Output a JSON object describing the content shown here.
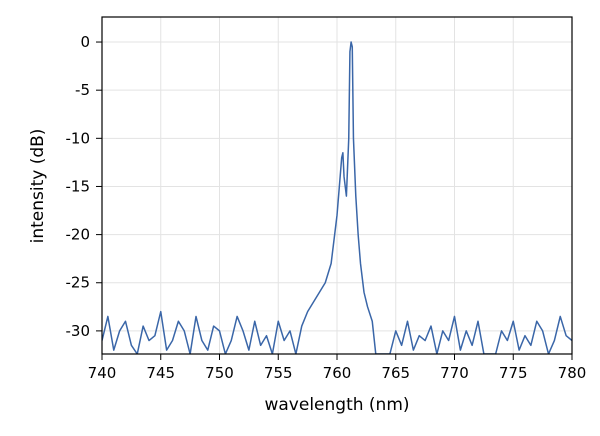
{
  "chart_data": {
    "type": "line",
    "xlabel": "wavelength (nm)",
    "ylabel": "intensity (dB)",
    "xlim": [
      740,
      780
    ],
    "ylim": [
      -32.4,
      2.6
    ],
    "xticks": [
      740,
      745,
      750,
      755,
      760,
      765,
      770,
      775,
      780
    ],
    "yticks": [
      0,
      -5,
      -10,
      -15,
      -20,
      -25,
      -30
    ],
    "grid": true,
    "series": [
      {
        "color": "#3a66a8",
        "x": [
          740,
          740.5,
          741,
          741.5,
          742,
          742.5,
          743,
          743.5,
          744,
          744.5,
          745,
          745.5,
          746,
          746.5,
          747,
          747.5,
          748,
          748.5,
          749,
          749.5,
          750,
          750.5,
          751,
          751.5,
          752,
          752.5,
          753,
          753.5,
          754,
          754.5,
          755,
          755.5,
          756,
          756.5,
          757,
          757.5,
          758,
          758.5,
          759,
          759.5,
          760,
          760.2,
          760.4,
          760.5,
          760.6,
          760.8,
          761,
          761.1,
          761.2,
          761.3,
          761.4,
          761.6,
          761.8,
          762,
          762.3,
          762.6,
          763,
          763.3,
          763.6,
          764,
          764.5,
          765,
          765.5,
          766,
          766.5,
          767,
          767.5,
          768,
          768.5,
          769,
          769.5,
          770,
          770.5,
          771,
          771.5,
          772,
          772.5,
          773,
          773.5,
          774,
          774.5,
          775,
          775.5,
          776,
          776.5,
          777,
          777.5,
          778,
          778.5,
          779,
          779.5,
          780
        ],
        "values": [
          -31,
          -28.5,
          -32,
          -30,
          -29,
          -31.5,
          -32.4,
          -29.5,
          -31,
          -30.5,
          -28,
          -32,
          -31,
          -29,
          -30,
          -32.4,
          -28.5,
          -31,
          -32,
          -29.5,
          -30,
          -32.4,
          -31,
          -28.5,
          -30,
          -32,
          -29,
          -31.5,
          -30.5,
          -32.4,
          -29,
          -31,
          -30,
          -32.4,
          -29.5,
          -28,
          -27,
          -26,
          -25,
          -23,
          -18,
          -15,
          -12,
          -11.5,
          -14,
          -16,
          -10,
          -1,
          0,
          -0.5,
          -10,
          -16,
          -20,
          -23,
          -26,
          -27.5,
          -29,
          -32.4,
          -32.4,
          -32.4,
          -32.4,
          -30,
          -31.5,
          -29,
          -32,
          -30.5,
          -31,
          -29.5,
          -32.4,
          -30,
          -31,
          -28.5,
          -32,
          -30,
          -31.5,
          -29,
          -32.4,
          -32.4,
          -32.4,
          -30,
          -31,
          -29,
          -32,
          -30.5,
          -31.5,
          -29,
          -30,
          -32.4,
          -31,
          -28.5,
          -30.5,
          -31
        ]
      }
    ]
  }
}
